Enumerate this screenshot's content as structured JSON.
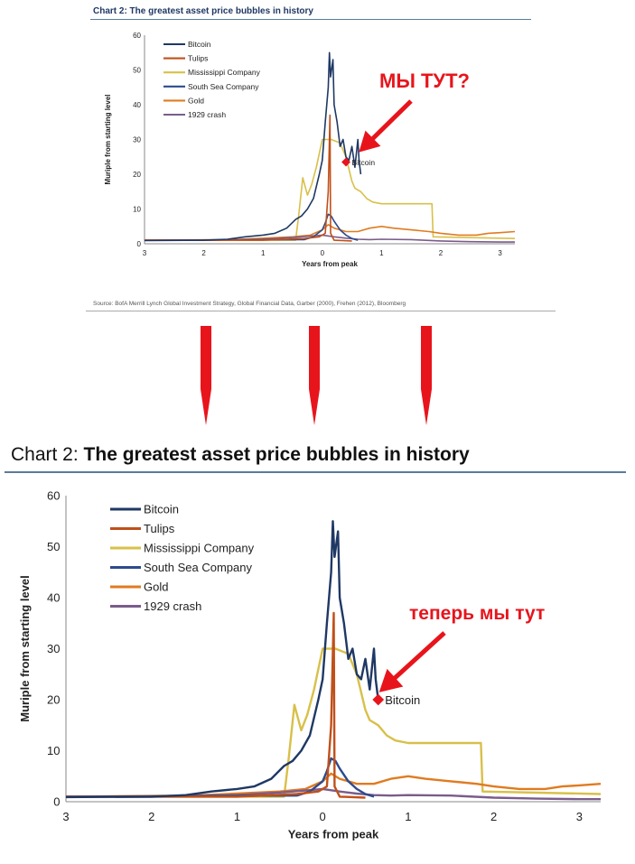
{
  "colors": {
    "bitcoin": "#1f3864",
    "tulips": "#c0501a",
    "mississippi": "#d8c04a",
    "south_sea": "#2e4a8c",
    "gold": "#e07b20",
    "crash1929": "#7a5c8a",
    "annotation": "#e8141c",
    "rule": "#5a7a9a"
  },
  "top_panel": {
    "title": "Chart 2: The greatest asset price bubbles in history",
    "annotation": "МЫ ТУТ?",
    "point_label": "Bitcoin",
    "source": "Source:  BofA Merrill Lynch Global Investment Strategy, Global Financial Data, Garber (2000), Frehen (2012),  Bloomberg"
  },
  "bottom_panel": {
    "title_prefix": "Chart 2: ",
    "title_main": "The greatest asset price bubbles in history",
    "annotation": "теперь мы тут",
    "point_label": "Bitcoin"
  },
  "chart_data": {
    "type": "line",
    "xlabel": "Years from peak",
    "ylabel": "Muriple from starting level",
    "x_ticks": [
      "3",
      "2",
      "1",
      "0",
      "1",
      "2",
      "3"
    ],
    "y_ticks": [
      "0",
      "10",
      "20",
      "30",
      "40",
      "50",
      "60"
    ],
    "xlim": [
      -3,
      3.25
    ],
    "ylim": [
      0,
      60
    ],
    "legend_position": "top-left",
    "series": [
      {
        "name": "Bitcoin",
        "key": "bitcoin",
        "points": [
          [
            -3,
            0.9
          ],
          [
            -2,
            1
          ],
          [
            -1.6,
            1.3
          ],
          [
            -1.3,
            2
          ],
          [
            -1.0,
            2.5
          ],
          [
            -0.8,
            3
          ],
          [
            -0.6,
            4.5
          ],
          [
            -0.45,
            7
          ],
          [
            -0.35,
            8
          ],
          [
            -0.25,
            10
          ],
          [
            -0.15,
            13
          ],
          [
            -0.05,
            20
          ],
          [
            0.0,
            24
          ],
          [
            0.05,
            35
          ],
          [
            0.1,
            45
          ],
          [
            0.12,
            55
          ],
          [
            0.14,
            48
          ],
          [
            0.18,
            53
          ],
          [
            0.2,
            40
          ],
          [
            0.25,
            35
          ],
          [
            0.3,
            28
          ],
          [
            0.35,
            30
          ],
          [
            0.4,
            25
          ],
          [
            0.45,
            24
          ],
          [
            0.5,
            28
          ],
          [
            0.55,
            22
          ],
          [
            0.6,
            30
          ],
          [
            0.62,
            24
          ],
          [
            0.65,
            20
          ]
        ]
      },
      {
        "name": "Tulips",
        "key": "tulips",
        "points": [
          [
            -3,
            1
          ],
          [
            -1,
            1
          ],
          [
            -0.3,
            1.5
          ],
          [
            -0.05,
            2
          ],
          [
            0.05,
            3
          ],
          [
            0.1,
            15
          ],
          [
            0.13,
            37
          ],
          [
            0.14,
            3
          ],
          [
            0.2,
            1
          ],
          [
            0.5,
            0.8
          ]
        ]
      },
      {
        "name": "Mississippi Company",
        "key": "mississippi",
        "points": [
          [
            -3,
            1
          ],
          [
            -0.45,
            1
          ],
          [
            -0.4,
            8
          ],
          [
            -0.33,
            19
          ],
          [
            -0.25,
            14
          ],
          [
            -0.18,
            17
          ],
          [
            -0.1,
            22
          ],
          [
            -0.05,
            26
          ],
          [
            0.0,
            30
          ],
          [
            0.15,
            30
          ],
          [
            0.3,
            29
          ],
          [
            0.4,
            25
          ],
          [
            0.5,
            18
          ],
          [
            0.55,
            16
          ],
          [
            0.65,
            15
          ],
          [
            0.75,
            13
          ],
          [
            0.85,
            12
          ],
          [
            1.0,
            11.5
          ],
          [
            1.85,
            11.5
          ],
          [
            1.87,
            2
          ],
          [
            3.25,
            1.5
          ]
        ]
      },
      {
        "name": "South Sea Company",
        "key": "south_sea",
        "points": [
          [
            -3,
            1
          ],
          [
            -0.3,
            1.2
          ],
          [
            -0.15,
            2
          ],
          [
            0,
            4
          ],
          [
            0.05,
            6
          ],
          [
            0.1,
            8.5
          ],
          [
            0.15,
            8
          ],
          [
            0.2,
            6.5
          ],
          [
            0.3,
            4
          ],
          [
            0.4,
            2.5
          ],
          [
            0.5,
            1.5
          ],
          [
            0.6,
            1
          ]
        ]
      },
      {
        "name": "Gold",
        "key": "gold",
        "points": [
          [
            -3,
            1
          ],
          [
            -1.5,
            1.2
          ],
          [
            -0.5,
            2
          ],
          [
            -0.2,
            2.5
          ],
          [
            0,
            4
          ],
          [
            0.1,
            5.5
          ],
          [
            0.2,
            4.5
          ],
          [
            0.4,
            3.5
          ],
          [
            0.6,
            3.5
          ],
          [
            0.8,
            4.5
          ],
          [
            1.0,
            5
          ],
          [
            1.2,
            4.5
          ],
          [
            1.5,
            4
          ],
          [
            1.8,
            3.5
          ],
          [
            2.0,
            3
          ],
          [
            2.3,
            2.5
          ],
          [
            2.6,
            2.5
          ],
          [
            2.8,
            3
          ],
          [
            3.0,
            3.2
          ],
          [
            3.25,
            3.5
          ]
        ]
      },
      {
        "name": "1929 crash",
        "key": "crash1929",
        "points": [
          [
            -3,
            1
          ],
          [
            -2,
            1
          ],
          [
            -1,
            1.3
          ],
          [
            -0.5,
            1.8
          ],
          [
            -0.2,
            2.2
          ],
          [
            0,
            2.5
          ],
          [
            0.2,
            2
          ],
          [
            0.4,
            1.6
          ],
          [
            0.6,
            1.3
          ],
          [
            0.8,
            1.2
          ],
          [
            1.0,
            1.3
          ],
          [
            1.5,
            1.2
          ],
          [
            2.0,
            0.8
          ],
          [
            2.5,
            0.6
          ],
          [
            3.0,
            0.5
          ],
          [
            3.25,
            0.5
          ]
        ]
      }
    ],
    "top_marker": {
      "x": 0.4,
      "y": 23.5
    },
    "bottom_marker": {
      "x": 0.65,
      "y": 20
    }
  }
}
